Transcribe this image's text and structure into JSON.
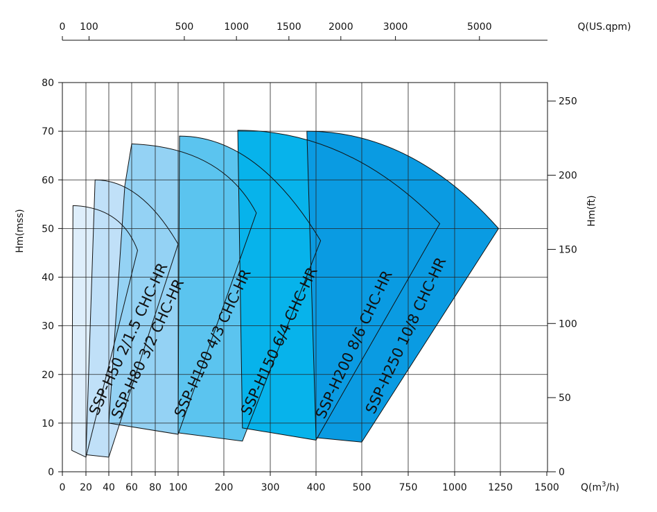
{
  "chart_data": {
    "type": "area",
    "title": "",
    "bottom_axis": {
      "label_main": "Q(m",
      "label_sup": "3",
      "label_end": "/h)",
      "ticks": [
        "0",
        "20",
        "40",
        "60",
        "80",
        "100",
        "200",
        "300",
        "400",
        "500",
        "750",
        "1000",
        "1250",
        "1500"
      ]
    },
    "top_axis": {
      "label": "Q(US.qpm)",
      "ticks": [
        "0",
        "100",
        "500",
        "1000",
        "1500",
        "2000",
        "3000",
        "5000"
      ]
    },
    "left_axis": {
      "label": "Hm(mss)",
      "ticks": [
        0,
        10,
        20,
        30,
        40,
        50,
        60,
        70,
        80
      ],
      "range": [
        0,
        80
      ]
    },
    "right_axis": {
      "label": "Hm(ft)",
      "ticks": [
        "0",
        "50",
        "100",
        "150",
        "200",
        "250"
      ],
      "range": [
        0,
        262.5
      ]
    },
    "grid": true,
    "series": [
      {
        "name": "SSP-H50 2/1.5 CHC-HR",
        "color": "#deeefb",
        "points": [
          [
            8,
            4.4
          ],
          [
            20,
            3
          ],
          [
            50,
            48
          ],
          [
            65,
            45.5
          ],
          [
            9,
            54.7
          ]
        ]
      },
      {
        "name": "SSP-H80 3/2 CHC-HR",
        "color": "#c0e0f8",
        "points": [
          [
            20,
            3.5
          ],
          [
            40,
            3
          ],
          [
            100,
            46.8
          ],
          [
            28,
            60
          ]
        ]
      },
      {
        "name": "SSP-H100 4/3 CHC-HR",
        "color": "#94d2f4",
        "points": [
          [
            40,
            10
          ],
          [
            100,
            7.7
          ],
          [
            270,
            53.2
          ],
          [
            60,
            67.4
          ],
          [
            54,
            58.8
          ]
        ]
      },
      {
        "name": "SSP-H150 6/4 CHC-HR",
        "color": "#5bc4ef",
        "points": [
          [
            100,
            8
          ],
          [
            240,
            6.3
          ],
          [
            410,
            47.5
          ],
          [
            103,
            69
          ]
        ]
      },
      {
        "name": "SSP-H200 8/6 CHC-HR",
        "color": "#07b3eb",
        "points": [
          [
            240,
            9
          ],
          [
            400,
            6.5
          ],
          [
            920,
            51
          ],
          [
            230,
            70.2
          ]
        ]
      },
      {
        "name": "SSP-H250 10/8 CHC-HR",
        "color": "#0a9be2",
        "points": [
          [
            400,
            7
          ],
          [
            500,
            6.1
          ],
          [
            1240,
            50
          ],
          [
            380,
            70
          ]
        ]
      }
    ]
  }
}
